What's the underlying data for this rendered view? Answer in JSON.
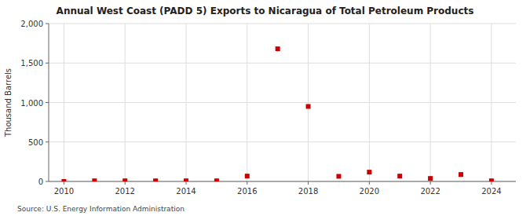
{
  "chart_data": {
    "type": "scatter",
    "title": "Annual West Coast (PADD 5) Exports to Nicaragua of Total Petroleum Products",
    "ylabel": "Thousand Barrels",
    "source": "Source: U.S. Energy Information Administration",
    "x": [
      2010,
      2011,
      2012,
      2013,
      2014,
      2015,
      2016,
      2017,
      2018,
      2019,
      2020,
      2021,
      2022,
      2023,
      2024
    ],
    "values": [
      0,
      8,
      8,
      8,
      8,
      8,
      68,
      1680,
      950,
      65,
      118,
      68,
      38,
      88,
      8
    ],
    "color": "#cc0000",
    "marker": "square",
    "xlim": [
      2009.5,
      2024.8
    ],
    "xticks": [
      2010,
      2012,
      2014,
      2016,
      2018,
      2020,
      2022,
      2024
    ],
    "ylim": [
      0,
      2000
    ],
    "yticks": [
      0,
      500,
      {
        "value": 1000,
        "label": "1,000"
      },
      {
        "value": 1500,
        "label": "1,500"
      },
      {
        "value": 2000,
        "label": "2,000"
      }
    ],
    "grid": true
  }
}
